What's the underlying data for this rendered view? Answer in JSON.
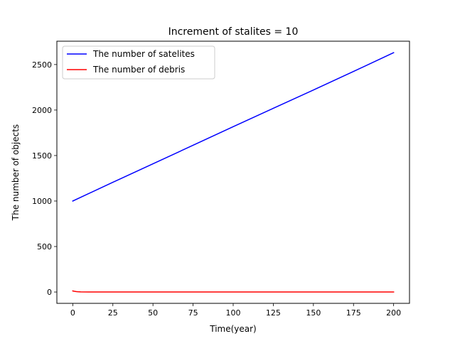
{
  "chart_data": {
    "type": "line",
    "title": "Increment of stalites = 10",
    "xlabel": "Time(year)",
    "ylabel": "The number of objects",
    "xlim": [
      -9.9,
      209.9
    ],
    "ylim": [
      -124.6,
      2756.6
    ],
    "xticks": [
      0,
      25,
      50,
      75,
      100,
      125,
      150,
      175,
      200
    ],
    "yticks": [
      0,
      500,
      1000,
      1500,
      2000,
      2500
    ],
    "grid": false,
    "legend_position": "top-left",
    "series": [
      {
        "name": "The number of satelites",
        "color": "#0000ff",
        "x": [
          0,
          25,
          50,
          75,
          100,
          125,
          150,
          175,
          200
        ],
        "y": [
          1000,
          1206,
          1409,
          1613,
          1817,
          2019,
          2220,
          2424,
          2631
        ]
      },
      {
        "name": "The number of debris",
        "color": "#ff0000",
        "x": [
          0,
          1,
          2,
          3,
          4,
          5,
          10,
          25,
          50,
          100,
          150,
          200
        ],
        "y": [
          12,
          8,
          5,
          3,
          2,
          1,
          0,
          0,
          0,
          0,
          0,
          0
        ]
      }
    ]
  }
}
